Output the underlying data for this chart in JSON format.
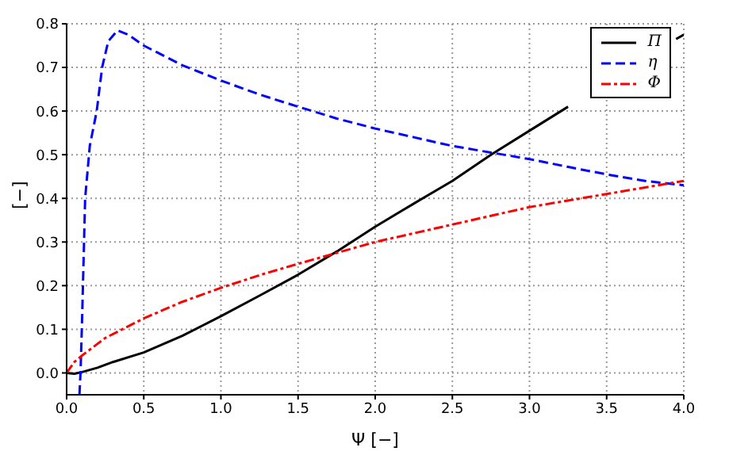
{
  "chart_data": {
    "type": "line",
    "xlabel": "Ψ [−]",
    "ylabel": "[−]",
    "xlim": [
      0,
      4
    ],
    "xticks": [
      {
        "value": 0,
        "label": "0.0"
      },
      0.5,
      {
        "value": 1,
        "label": "1.0"
      },
      1.5,
      {
        "value": 2,
        "label": "2.0"
      },
      2.5,
      {
        "value": 3,
        "label": "3.0"
      },
      3.5,
      {
        "value": 4,
        "label": "4.0"
      }
    ],
    "ylim": [
      -0.05,
      0.8
    ],
    "yticks": [
      {
        "value": 0,
        "label": "0.0"
      },
      0.1,
      0.2,
      0.3,
      0.4,
      0.5,
      0.6,
      0.7,
      0.8
    ],
    "grid": true,
    "legend": "top right",
    "marker": "none",
    "series": [
      {
        "name": "Π",
        "color": "#000000",
        "line_style": "solid",
        "x": [
          0,
          0.05,
          0.1,
          0.2,
          0.3,
          0.5,
          0.75,
          1.0,
          1.25,
          1.5,
          1.75,
          2.0,
          2.25,
          2.5,
          2.75,
          3.0,
          3.25,
          3.5,
          3.75,
          3.95,
          4.0
        ],
        "values": [
          0,
          -0.002,
          0.002,
          0.012,
          0.025,
          0.047,
          0.085,
          0.13,
          0.177,
          0.225,
          0.278,
          0.335,
          0.388,
          0.44,
          0.5,
          0.555,
          0.61,
          null,
          null,
          0.765,
          0.775
        ]
      },
      {
        "name": "η",
        "color": "#0000ff",
        "line_style": "dashed",
        "x": [
          0.083,
          0.09,
          0.1,
          0.12,
          0.15,
          0.195,
          0.23,
          0.27,
          0.33,
          0.4,
          0.5,
          0.75,
          1.0,
          1.25,
          1.5,
          1.75,
          2.0,
          2.25,
          2.5,
          2.75,
          3.0,
          3.25,
          3.5,
          3.75,
          4.0
        ],
        "values": [
          -0.05,
          0,
          0.12,
          0.4,
          0.52,
          0.6,
          0.7,
          0.76,
          0.785,
          0.775,
          0.75,
          0.705,
          0.67,
          0.638,
          0.61,
          0.583,
          0.56,
          0.54,
          0.52,
          0.505,
          0.49,
          0.472,
          0.455,
          0.44,
          0.43
        ]
      },
      {
        "name": "Φ",
        "color": "#ff0000",
        "line_style": "dashdot",
        "x": [
          0,
          0.05,
          0.1,
          0.25,
          0.5,
          0.75,
          1.0,
          1.25,
          1.5,
          1.75,
          2.0,
          2.25,
          2.5,
          2.75,
          3.0,
          3.25,
          3.5,
          3.75,
          4.0
        ],
        "values": [
          0,
          0.025,
          0.04,
          0.08,
          0.125,
          0.163,
          0.195,
          0.224,
          0.25,
          0.275,
          0.3,
          0.32,
          0.34,
          0.36,
          0.38,
          0.395,
          0.41,
          0.425,
          0.44
        ]
      }
    ]
  }
}
